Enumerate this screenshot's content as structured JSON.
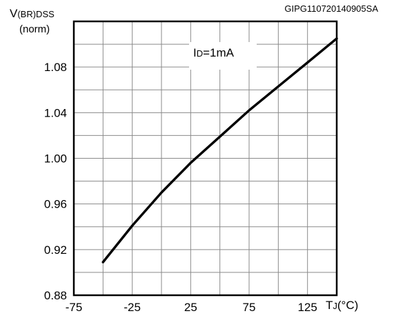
{
  "code": "GIPG110720140905SA",
  "chart_data": {
    "type": "line",
    "ylabel_main": "V",
    "ylabel_sub": "(BR)DSS",
    "ylabel_norm": "(norm)",
    "xlabel_main": "T",
    "xlabel_sub": "J",
    "xlabel_unit": "(°C)",
    "annotation_main": "I",
    "annotation_sub": "D",
    "annotation_rest": "=1mA",
    "xlim": [
      -75,
      150
    ],
    "ylim": [
      0.88,
      1.12
    ],
    "x_ticks": [
      -75,
      -25,
      25,
      75,
      125
    ],
    "x_tick_labels": [
      "-75",
      "-25",
      "25",
      "75",
      "125"
    ],
    "y_ticks": [
      0.88,
      0.92,
      0.96,
      1.0,
      1.04,
      1.08
    ],
    "y_tick_labels": [
      "0.88",
      "0.92",
      "0.96",
      "1.00",
      "1.04",
      "1.08"
    ],
    "grid": true,
    "series": [
      {
        "x": [
          -50,
          -25,
          0,
          25,
          50,
          75,
          100,
          125,
          150
        ],
        "y": [
          0.909,
          0.941,
          0.97,
          0.996,
          1.019,
          1.042,
          1.063,
          1.084,
          1.105
        ]
      }
    ]
  }
}
